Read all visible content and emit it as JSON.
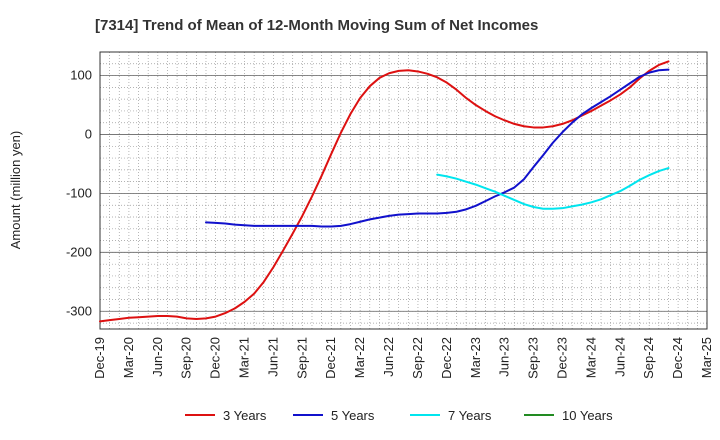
{
  "chart_data": {
    "type": "line",
    "title": "[7314]  Trend of Mean of 12-Month Moving Sum of Net Incomes",
    "xlabel": "",
    "ylabel": "Amount (million yen)",
    "ylim": [
      -330,
      140
    ],
    "yticks": [
      100,
      0,
      -100,
      -200,
      -300
    ],
    "x_range": [
      "2019-12",
      "2025-03"
    ],
    "xtick_labels": [
      "Dec-19",
      "Mar-20",
      "Jun-20",
      "Sep-20",
      "Dec-20",
      "Mar-21",
      "Jun-21",
      "Sep-21",
      "Dec-21",
      "Mar-22",
      "Jun-22",
      "Sep-22",
      "Dec-22",
      "Mar-23",
      "Jun-23",
      "Sep-23",
      "Dec-23",
      "Mar-24",
      "Jun-24",
      "Sep-24",
      "Dec-24",
      "Mar-25"
    ],
    "grid": true,
    "legend_position": "bottom",
    "series": [
      {
        "name": "3 Years",
        "color": "#dd1111",
        "points": [
          [
            "2019-12",
            -317
          ],
          [
            "2020-01",
            -315
          ],
          [
            "2020-02",
            -313
          ],
          [
            "2020-03",
            -311
          ],
          [
            "2020-04",
            -310
          ],
          [
            "2020-05",
            -309
          ],
          [
            "2020-06",
            -308
          ],
          [
            "2020-07",
            -308
          ],
          [
            "2020-08",
            -309
          ],
          [
            "2020-09",
            -312
          ],
          [
            "2020-10",
            -313
          ],
          [
            "2020-11",
            -312
          ],
          [
            "2020-12",
            -309
          ],
          [
            "2021-01",
            -303
          ],
          [
            "2021-02",
            -295
          ],
          [
            "2021-03",
            -284
          ],
          [
            "2021-04",
            -270
          ],
          [
            "2021-05",
            -250
          ],
          [
            "2021-06",
            -225
          ],
          [
            "2021-07",
            -197
          ],
          [
            "2021-08",
            -168
          ],
          [
            "2021-09",
            -138
          ],
          [
            "2021-10",
            -105
          ],
          [
            "2021-11",
            -70
          ],
          [
            "2021-12",
            -33
          ],
          [
            "2022-01",
            3
          ],
          [
            "2022-02",
            35
          ],
          [
            "2022-03",
            62
          ],
          [
            "2022-04",
            82
          ],
          [
            "2022-05",
            96
          ],
          [
            "2022-06",
            104
          ],
          [
            "2022-07",
            108
          ],
          [
            "2022-08",
            109
          ],
          [
            "2022-09",
            107
          ],
          [
            "2022-10",
            103
          ],
          [
            "2022-11",
            97
          ],
          [
            "2022-12",
            88
          ],
          [
            "2023-01",
            76
          ],
          [
            "2023-02",
            62
          ],
          [
            "2023-03",
            50
          ],
          [
            "2023-04",
            40
          ],
          [
            "2023-05",
            31
          ],
          [
            "2023-06",
            24
          ],
          [
            "2023-07",
            18
          ],
          [
            "2023-08",
            14
          ],
          [
            "2023-09",
            12
          ],
          [
            "2023-10",
            12
          ],
          [
            "2023-11",
            14
          ],
          [
            "2023-12",
            18
          ],
          [
            "2024-01",
            24
          ],
          [
            "2024-02",
            32
          ],
          [
            "2024-03",
            40
          ],
          [
            "2024-04",
            49
          ],
          [
            "2024-05",
            58
          ],
          [
            "2024-06",
            68
          ],
          [
            "2024-07",
            80
          ],
          [
            "2024-08",
            95
          ],
          [
            "2024-09",
            108
          ],
          [
            "2024-10",
            118
          ],
          [
            "2024-11",
            124
          ]
        ]
      },
      {
        "name": "5 Years",
        "color": "#1111cc",
        "points": [
          [
            "2020-11",
            -149
          ],
          [
            "2020-12",
            -150
          ],
          [
            "2021-01",
            -151
          ],
          [
            "2021-02",
            -153
          ],
          [
            "2021-03",
            -154
          ],
          [
            "2021-04",
            -155
          ],
          [
            "2021-05",
            -155
          ],
          [
            "2021-06",
            -155
          ],
          [
            "2021-07",
            -155
          ],
          [
            "2021-08",
            -155
          ],
          [
            "2021-09",
            -155
          ],
          [
            "2021-10",
            -155
          ],
          [
            "2021-11",
            -156
          ],
          [
            "2021-12",
            -156
          ],
          [
            "2022-01",
            -155
          ],
          [
            "2022-02",
            -152
          ],
          [
            "2022-03",
            -148
          ],
          [
            "2022-04",
            -144
          ],
          [
            "2022-05",
            -141
          ],
          [
            "2022-06",
            -138
          ],
          [
            "2022-07",
            -136
          ],
          [
            "2022-08",
            -135
          ],
          [
            "2022-09",
            -134
          ],
          [
            "2022-10",
            -134
          ],
          [
            "2022-11",
            -134
          ],
          [
            "2022-12",
            -133
          ],
          [
            "2023-01",
            -131
          ],
          [
            "2023-02",
            -127
          ],
          [
            "2023-03",
            -121
          ],
          [
            "2023-04",
            -113
          ],
          [
            "2023-05",
            -105
          ],
          [
            "2023-06",
            -98
          ],
          [
            "2023-07",
            -90
          ],
          [
            "2023-08",
            -76
          ],
          [
            "2023-09",
            -55
          ],
          [
            "2023-10",
            -35
          ],
          [
            "2023-11",
            -14
          ],
          [
            "2023-12",
            4
          ],
          [
            "2024-01",
            20
          ],
          [
            "2024-02",
            34
          ],
          [
            "2024-03",
            45
          ],
          [
            "2024-04",
            55
          ],
          [
            "2024-05",
            65
          ],
          [
            "2024-06",
            76
          ],
          [
            "2024-07",
            87
          ],
          [
            "2024-08",
            98
          ],
          [
            "2024-09",
            105
          ],
          [
            "2024-10",
            109
          ],
          [
            "2024-11",
            110
          ]
        ]
      },
      {
        "name": "7 Years",
        "color": "#00e5ee",
        "points": [
          [
            "2022-11",
            -68
          ],
          [
            "2022-12",
            -71
          ],
          [
            "2023-01",
            -75
          ],
          [
            "2023-02",
            -80
          ],
          [
            "2023-03",
            -85
          ],
          [
            "2023-04",
            -91
          ],
          [
            "2023-05",
            -97
          ],
          [
            "2023-06",
            -104
          ],
          [
            "2023-07",
            -111
          ],
          [
            "2023-08",
            -118
          ],
          [
            "2023-09",
            -123
          ],
          [
            "2023-10",
            -126
          ],
          [
            "2023-11",
            -126
          ],
          [
            "2023-12",
            -125
          ],
          [
            "2024-01",
            -122
          ],
          [
            "2024-02",
            -119
          ],
          [
            "2024-03",
            -115
          ],
          [
            "2024-04",
            -110
          ],
          [
            "2024-05",
            -103
          ],
          [
            "2024-06",
            -96
          ],
          [
            "2024-07",
            -87
          ],
          [
            "2024-08",
            -77
          ],
          [
            "2024-09",
            -69
          ],
          [
            "2024-10",
            -62
          ],
          [
            "2024-11",
            -57
          ]
        ]
      },
      {
        "name": "10 Years",
        "color": "#228b22",
        "points": []
      }
    ]
  }
}
